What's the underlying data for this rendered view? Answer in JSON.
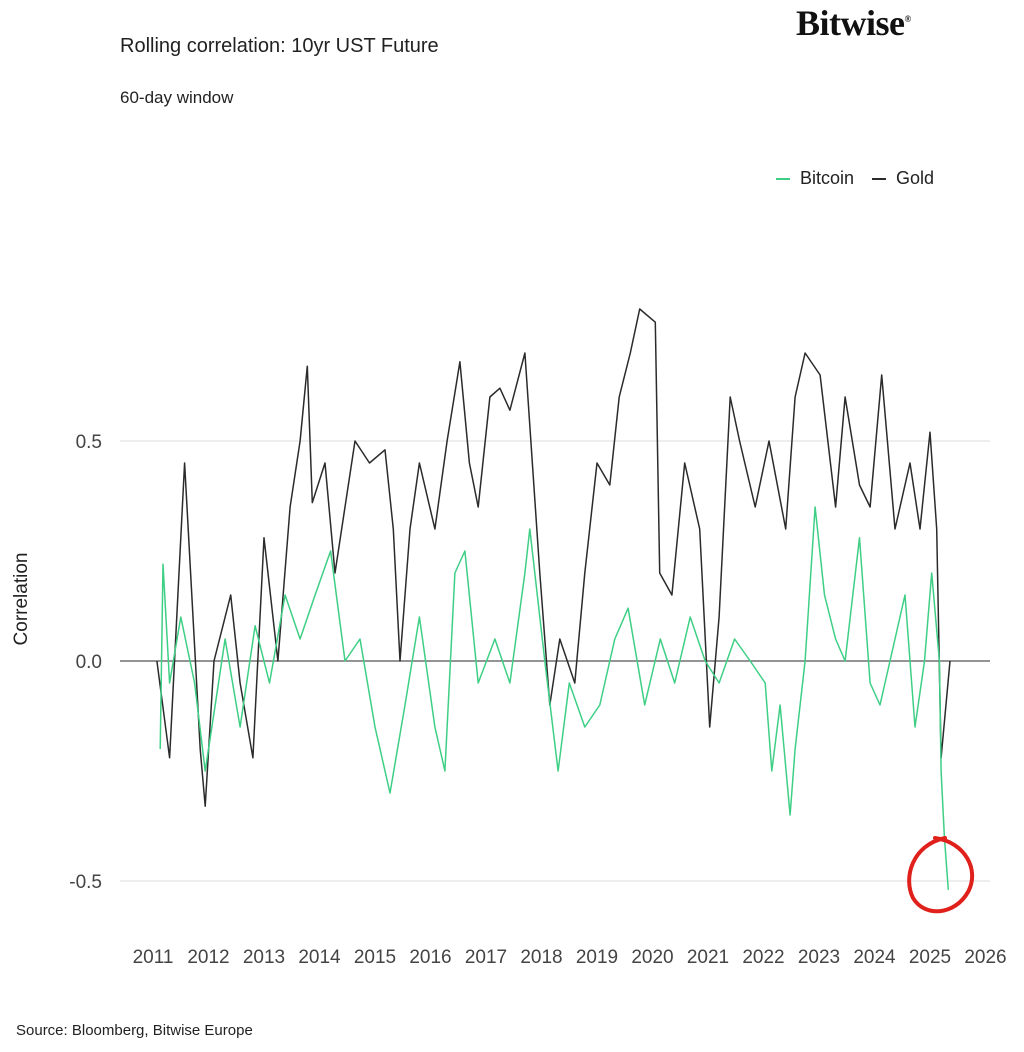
{
  "logo": "Bitwise",
  "chart_data": {
    "type": "line",
    "title": "Rolling correlation: 10yr UST Future",
    "subtitle": "60-day window",
    "xlabel": "",
    "ylabel": "Correlation",
    "xlim": [
      2011,
      2026
    ],
    "ylim": [
      -0.6,
      0.85
    ],
    "yticks": [
      0.5,
      0.0,
      -0.5
    ],
    "ytick_labels": [
      "0.5",
      "0.0",
      "-0.5"
    ],
    "xticks": [
      "2011",
      "2012",
      "2013",
      "2014",
      "2015",
      "2016",
      "2017",
      "2018",
      "2019",
      "2020",
      "2021",
      "2022",
      "2023",
      "2024",
      "2025",
      "2026"
    ],
    "grid": "horizontal",
    "legend_position": "top-right",
    "source": "Source: Bloomberg, Bitwise Europe",
    "annotation": "red hand-drawn circle around Bitcoin low near -0.5 in 2025",
    "series": [
      {
        "name": "Bitcoin",
        "color": "#3ecf85",
        "x": [
          2011.13,
          2011.18,
          2011.3,
          2011.5,
          2011.75,
          2011.94,
          2012.12,
          2012.3,
          2012.57,
          2012.84,
          2013.1,
          2013.38,
          2013.65,
          2013.92,
          2014.2,
          2014.46,
          2014.73,
          2015.0,
          2015.27,
          2015.54,
          2015.8,
          2016.08,
          2016.26,
          2016.44,
          2016.62,
          2016.86,
          2017.16,
          2017.43,
          2017.7,
          2017.79,
          2018.06,
          2018.3,
          2018.5,
          2018.78,
          2019.05,
          2019.32,
          2019.56,
          2019.86,
          2020.14,
          2020.4,
          2020.68,
          2020.95,
          2021.2,
          2021.48,
          2021.76,
          2022.03,
          2022.15,
          2022.3,
          2022.48,
          2022.57,
          2022.75,
          2022.93,
          2023.1,
          2023.3,
          2023.47,
          2023.73,
          2023.92,
          2024.1,
          2024.37,
          2024.55,
          2024.73,
          2024.9,
          2025.03,
          2025.17,
          2025.2,
          2025.26,
          2025.33
        ],
        "values": [
          -0.2,
          0.22,
          -0.05,
          0.1,
          -0.05,
          -0.25,
          -0.1,
          0.05,
          -0.15,
          0.08,
          -0.05,
          0.15,
          0.05,
          0.15,
          0.25,
          0.0,
          0.05,
          -0.15,
          -0.3,
          -0.1,
          0.1,
          -0.15,
          -0.25,
          0.2,
          0.25,
          -0.05,
          0.05,
          -0.05,
          0.2,
          0.3,
          0.0,
          -0.25,
          -0.05,
          -0.15,
          -0.1,
          0.05,
          0.12,
          -0.1,
          0.05,
          -0.05,
          0.1,
          0.0,
          -0.05,
          0.05,
          0.0,
          -0.05,
          -0.25,
          -0.1,
          -0.35,
          -0.2,
          0.0,
          0.35,
          0.15,
          0.05,
          0.0,
          0.28,
          -0.05,
          -0.1,
          0.05,
          0.15,
          -0.15,
          0.0,
          0.2,
          0.0,
          -0.25,
          -0.4,
          -0.52
        ]
      },
      {
        "name": "Gold",
        "color": "#2b2b2b",
        "x": [
          2011.07,
          2011.3,
          2011.57,
          2011.85,
          2011.94,
          2012.1,
          2012.4,
          2012.57,
          2012.8,
          2013.0,
          2013.25,
          2013.47,
          2013.65,
          2013.78,
          2013.87,
          2014.1,
          2014.28,
          2014.64,
          2014.9,
          2015.18,
          2015.33,
          2015.45,
          2015.63,
          2015.8,
          2016.08,
          2016.3,
          2016.53,
          2016.7,
          2016.86,
          2017.07,
          2017.25,
          2017.43,
          2017.7,
          2017.97,
          2018.15,
          2018.33,
          2018.6,
          2018.78,
          2019.0,
          2019.23,
          2019.4,
          2019.6,
          2019.77,
          2020.05,
          2020.13,
          2020.35,
          2020.58,
          2020.85,
          2021.03,
          2021.2,
          2021.4,
          2021.57,
          2021.85,
          2022.1,
          2022.4,
          2022.57,
          2022.75,
          2023.02,
          2023.3,
          2023.47,
          2023.73,
          2023.92,
          2024.13,
          2024.37,
          2024.64,
          2024.82,
          2025.0,
          2025.12,
          2025.2,
          2025.36
        ],
        "values": [
          0.0,
          -0.22,
          0.45,
          -0.2,
          -0.33,
          0.0,
          0.15,
          -0.05,
          -0.22,
          0.28,
          0.0,
          0.35,
          0.5,
          0.67,
          0.36,
          0.45,
          0.2,
          0.5,
          0.45,
          0.48,
          0.3,
          0.0,
          0.3,
          0.45,
          0.3,
          0.5,
          0.68,
          0.45,
          0.35,
          0.6,
          0.62,
          0.57,
          0.7,
          0.2,
          -0.1,
          0.05,
          -0.05,
          0.2,
          0.45,
          0.4,
          0.6,
          0.7,
          0.8,
          0.77,
          0.2,
          0.15,
          0.45,
          0.3,
          -0.15,
          0.1,
          0.6,
          0.5,
          0.35,
          0.5,
          0.3,
          0.6,
          0.7,
          0.65,
          0.35,
          0.6,
          0.4,
          0.35,
          0.65,
          0.3,
          0.45,
          0.3,
          0.52,
          0.3,
          -0.22,
          0.0
        ]
      }
    ]
  }
}
